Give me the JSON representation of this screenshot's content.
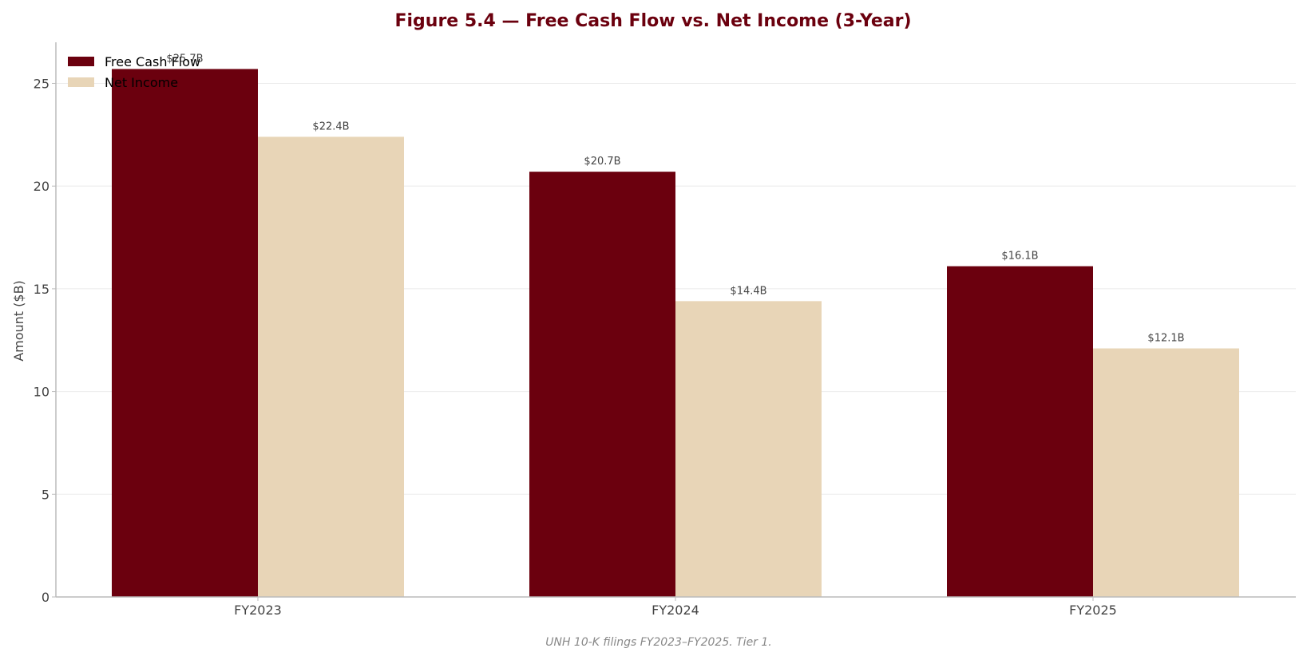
{
  "chart_data": {
    "type": "bar",
    "title": "Figure 5.4 — Free Cash Flow vs. Net Income (3-Year)",
    "xlabel": "",
    "ylabel": "Amount ($B)",
    "categories": [
      "FY2023",
      "FY2024",
      "FY2025"
    ],
    "series": [
      {
        "name": "Free Cash Flow",
        "values": [
          25.7,
          20.7,
          16.1
        ],
        "labels": [
          "$25.7B",
          "$20.7B",
          "$16.1B"
        ],
        "color": "#6b000e"
      },
      {
        "name": "Net Income",
        "values": [
          22.4,
          14.4,
          12.1
        ],
        "labels": [
          "$22.4B",
          "$14.4B",
          "$12.1B"
        ],
        "color": "#e8d5b7"
      }
    ],
    "ylim": [
      0,
      27
    ],
    "yticks": [
      0,
      5,
      10,
      15,
      20,
      25
    ],
    "grid": "horizontal",
    "legend_position": "top-left",
    "caption": "UNH 10-K filings FY2023–FY2025. Tier 1.",
    "colors": {
      "title": "#6b000e",
      "grid": "#ebebeb",
      "axis": "#bbbbbb"
    }
  }
}
